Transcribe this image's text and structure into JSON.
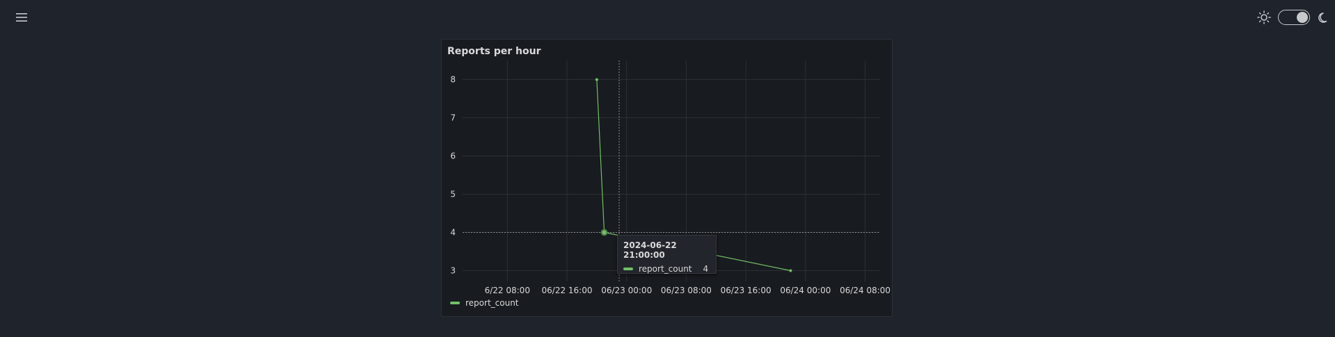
{
  "header": {
    "menu_icon": "hamburger-menu-icon",
    "light_icon": "sun-icon",
    "dark_icon": "moon-icon",
    "theme_toggle_state": "dark"
  },
  "panel": {
    "title": "Reports per hour"
  },
  "tooltip": {
    "time": "2024-06-22 21:00:00",
    "series": "report_count",
    "value": "4"
  },
  "colors": {
    "series": "#73bf69",
    "background": "#1f232b",
    "panel": "#181b1f"
  },
  "chart_data": {
    "type": "line",
    "title": "Reports per hour",
    "series": [
      {
        "name": "report_count",
        "points": [
          {
            "x": "2024-06-22 20:00",
            "y": 8
          },
          {
            "x": "2024-06-22 21:00",
            "y": 4
          },
          {
            "x": "2024-06-23 22:00",
            "y": 3
          }
        ]
      }
    ],
    "x_ticks": [
      "6/22 08:00",
      "06/22 16:00",
      "06/23 00:00",
      "06/23 08:00",
      "06/23 16:00",
      "06/24 00:00",
      "06/24 08:00"
    ],
    "y_ticks": [
      3,
      4,
      5,
      6,
      7,
      8
    ],
    "xlim": [
      "2024-06-22 02:00",
      "2024-06-24 10:00"
    ],
    "ylim": [
      2.5,
      8.5
    ],
    "grid": true,
    "legend": "bottom-left",
    "crosshair": {
      "x": "2024-06-22 23:00",
      "y": 4
    }
  }
}
